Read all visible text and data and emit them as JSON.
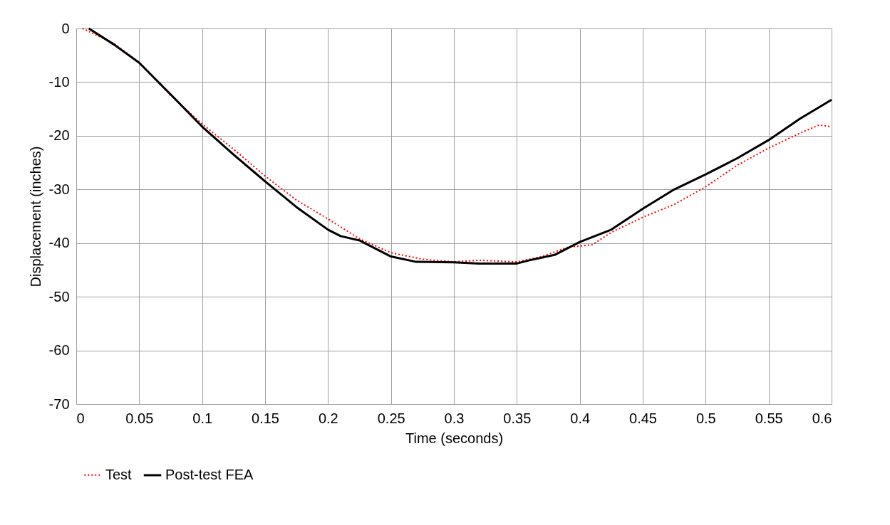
{
  "chart_data": {
    "type": "line",
    "xlabel": "Time (seconds)",
    "ylabel": "Displacement (inches)",
    "xlim": [
      0,
      0.6
    ],
    "xticks": [
      0,
      0.05,
      0.1,
      0.15,
      0.2,
      0.25,
      0.3,
      0.35,
      0.4,
      0.45,
      0.5,
      0.55,
      0.6
    ],
    "ylim": [
      -70,
      0
    ],
    "yticks": [
      -70,
      -60,
      -50,
      -40,
      -30,
      -20,
      -10,
      0
    ],
    "grid": true,
    "legend": "bottom",
    "marker": "none",
    "series": [
      {
        "name": "Test",
        "color": "#ff0000",
        "line_style": "dotted",
        "x": [
          0.005,
          0.03,
          0.05,
          0.075,
          0.1,
          0.125,
          0.15,
          0.175,
          0.2,
          0.225,
          0.25,
          0.275,
          0.3,
          0.32,
          0.35,
          0.37,
          0.39,
          0.41,
          0.425,
          0.45,
          0.475,
          0.5,
          0.525,
          0.55,
          0.575,
          0.59,
          0.6
        ],
        "values": [
          0,
          -2.8,
          -6.3,
          -12.5,
          -17.8,
          -22.5,
          -27.5,
          -32,
          -35.5,
          -39.2,
          -41.8,
          -43,
          -43.5,
          -43.2,
          -43.5,
          -42.5,
          -40.8,
          -40.3,
          -38,
          -35.2,
          -32.8,
          -29.5,
          -25.5,
          -22.3,
          -19.5,
          -18,
          -18.3
        ]
      },
      {
        "name": "Post-test FEA",
        "color": "#000000",
        "line_style": "solid",
        "x": [
          0.01,
          0.03,
          0.05,
          0.075,
          0.1,
          0.125,
          0.15,
          0.175,
          0.2,
          0.21,
          0.225,
          0.25,
          0.27,
          0.3,
          0.32,
          0.35,
          0.36,
          0.38,
          0.4,
          0.425,
          0.45,
          0.475,
          0.5,
          0.525,
          0.55,
          0.575,
          0.6
        ],
        "values": [
          0,
          -3,
          -6.4,
          -12.3,
          -18.3,
          -23.5,
          -28.5,
          -33.3,
          -37.5,
          -38.7,
          -39.5,
          -42.5,
          -43.5,
          -43.6,
          -43.8,
          -43.8,
          -43.2,
          -42.2,
          -39.8,
          -37.5,
          -33.6,
          -30,
          -27.2,
          -24.2,
          -20.8,
          -16.8,
          -13.3
        ]
      }
    ]
  }
}
